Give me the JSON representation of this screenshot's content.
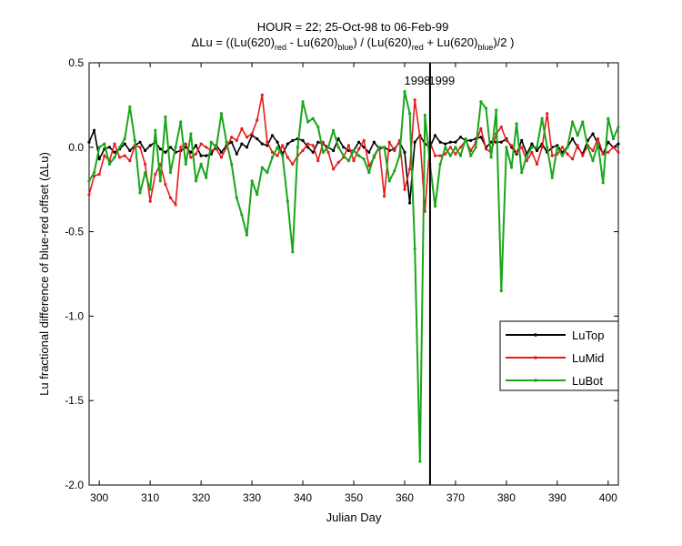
{
  "chart_data": {
    "type": "line",
    "title_line1": "HOUR = 22; 25-Oct-98 to 06-Feb-99",
    "title_line2": {
      "prefix": "ΔLu = ((Lu(620)",
      "sub1": "red",
      "mid1": " - Lu(620)",
      "sub2": "blue",
      "mid2": ") / (Lu(620)",
      "sub3": "red",
      "mid3": " + Lu(620)",
      "sub4": "blue",
      "suffix": ")/2  )"
    },
    "xlabel": "Julian Day",
    "ylabel": "Lu fractional difference of blue-red offset (ΔLu)",
    "xlim": [
      298,
      402
    ],
    "ylim": [
      -2.0,
      0.5
    ],
    "xticks": [
      300,
      310,
      320,
      330,
      340,
      350,
      360,
      370,
      380,
      390,
      400
    ],
    "yticks": [
      0.5,
      0.0,
      -0.5,
      -1.0,
      -1.5,
      -2.0
    ],
    "ytick_labels": [
      "0.5",
      "0.0",
      "-0.5",
      "-1.0",
      "-1.5",
      "-2.0"
    ],
    "vline_x": 365,
    "annotations": [
      {
        "text": "1998",
        "x": 362.5,
        "y": 0.37
      },
      {
        "text": "1999",
        "x": 367.3,
        "y": 0.37
      }
    ],
    "legend": {
      "position": "right",
      "entries": [
        "LuTop",
        "LuMid",
        "LuBot"
      ]
    },
    "series": [
      {
        "name": "LuTop",
        "color": "#000000",
        "x": [
          298,
          299,
          300,
          301,
          302,
          303,
          304,
          305,
          306,
          307,
          308,
          309,
          310,
          311,
          312,
          313,
          314,
          315,
          316,
          317,
          318,
          319,
          320,
          321,
          322,
          323,
          324,
          325,
          326,
          327,
          328,
          329,
          330,
          331,
          332,
          333,
          334,
          335,
          336,
          337,
          338,
          339,
          340,
          341,
          342,
          343,
          344,
          345,
          346,
          347,
          348,
          349,
          350,
          351,
          352,
          353,
          354,
          355,
          356,
          357,
          358,
          359,
          360,
          361,
          362,
          363,
          364,
          365,
          366,
          367,
          368,
          369,
          370,
          371,
          372,
          373,
          374,
          375,
          376,
          377,
          378,
          379,
          380,
          381,
          382,
          383,
          384,
          385,
          386,
          387,
          388,
          389,
          390,
          391,
          392,
          393,
          394,
          395,
          396,
          397,
          398,
          399,
          400,
          401,
          402
        ],
        "values": [
          0.03,
          0.1,
          -0.07,
          -0.01,
          0.0,
          -0.03,
          -0.01,
          0.02,
          -0.02,
          0.01,
          0.03,
          -0.02,
          0.01,
          0.03,
          -0.01,
          -0.03,
          0.0,
          -0.03,
          -0.02,
          0.0,
          -0.03,
          0.01,
          -0.05,
          -0.05,
          -0.04,
          0.01,
          -0.03,
          0.01,
          0.03,
          -0.04,
          0.02,
          0.0,
          0.07,
          0.05,
          0.02,
          0.01,
          0.07,
          0.03,
          -0.04,
          0.02,
          0.04,
          0.05,
          0.04,
          0.0,
          -0.03,
          0.03,
          0.02,
          0.0,
          -0.02,
          0.05,
          0.0,
          -0.02,
          -0.02,
          0.03,
          0.0,
          -0.03,
          0.03,
          -0.01,
          0.0,
          -0.02,
          -0.01,
          0.03,
          -0.03,
          -0.33,
          0.03,
          0.07,
          0.02,
          0.0,
          0.07,
          0.03,
          0.02,
          0.03,
          0.03,
          0.06,
          0.04,
          0.04,
          0.05,
          0.06,
          0.0,
          0.03,
          0.03,
          0.03,
          0.05,
          0.0,
          -0.04,
          0.04,
          -0.04,
          0.02,
          -0.02,
          0.02,
          -0.03,
          0.0,
          0.01,
          -0.03,
          0.0,
          0.05,
          0.0,
          -0.04,
          0.04,
          0.08,
          0.02,
          -0.04,
          0.03,
          0.0,
          0.02
        ]
      },
      {
        "name": "LuMid",
        "color": "#e61a1a",
        "x": [
          298,
          299,
          300,
          301,
          302,
          303,
          304,
          305,
          306,
          307,
          308,
          309,
          310,
          311,
          312,
          313,
          314,
          315,
          316,
          317,
          318,
          319,
          320,
          321,
          322,
          323,
          324,
          325,
          326,
          327,
          328,
          329,
          330,
          331,
          332,
          333,
          334,
          335,
          336,
          337,
          338,
          339,
          340,
          341,
          342,
          343,
          344,
          345,
          346,
          347,
          348,
          349,
          350,
          351,
          352,
          353,
          354,
          355,
          356,
          357,
          358,
          359,
          360,
          361,
          362,
          363,
          364,
          365,
          366,
          367,
          368,
          369,
          370,
          371,
          372,
          373,
          374,
          375,
          376,
          377,
          378,
          379,
          380,
          381,
          382,
          383,
          384,
          385,
          386,
          387,
          388,
          389,
          390,
          391,
          392,
          393,
          394,
          395,
          396,
          397,
          398,
          399,
          400,
          401,
          402
        ],
        "values": [
          -0.28,
          -0.17,
          -0.16,
          -0.05,
          -0.08,
          0.02,
          -0.06,
          -0.05,
          -0.08,
          0.01,
          0.0,
          -0.1,
          -0.32,
          -0.16,
          -0.1,
          -0.22,
          -0.3,
          -0.34,
          0.0,
          0.02,
          -0.06,
          -0.04,
          0.02,
          0.0,
          -0.02,
          -0.01,
          -0.06,
          0.0,
          0.06,
          0.04,
          0.11,
          0.06,
          0.08,
          0.16,
          0.31,
          0.03,
          -0.03,
          -0.05,
          0.01,
          -0.06,
          -0.1,
          -0.05,
          -0.02,
          0.02,
          0.01,
          -0.08,
          0.03,
          -0.03,
          -0.13,
          -0.09,
          -0.06,
          0.01,
          -0.08,
          -0.01,
          0.04,
          -0.11,
          -0.06,
          0.0,
          -0.29,
          0.03,
          -0.02,
          0.04,
          -0.25,
          -0.13,
          0.28,
          0.06,
          -0.38,
          0.03,
          -0.05,
          -0.05,
          -0.04,
          0.0,
          -0.04,
          0.0,
          0.04,
          -0.02,
          0.03,
          0.11,
          -0.01,
          -0.03,
          0.08,
          0.12,
          0.04,
          0.01,
          -0.03,
          0.0,
          -0.08,
          -0.03,
          -0.1,
          0.0,
          0.2,
          -0.05,
          -0.04,
          0.0,
          -0.04,
          -0.07,
          0.01,
          -0.05,
          0.01,
          -0.02,
          0.05,
          -0.04,
          -0.03,
          0.0,
          -0.03
        ]
      },
      {
        "name": "LuBot",
        "color": "#1aa61a",
        "x": [
          298,
          299,
          300,
          301,
          302,
          303,
          304,
          305,
          306,
          307,
          308,
          309,
          310,
          311,
          312,
          313,
          314,
          315,
          316,
          317,
          318,
          319,
          320,
          321,
          322,
          323,
          324,
          325,
          326,
          327,
          328,
          329,
          330,
          331,
          332,
          333,
          334,
          335,
          336,
          337,
          338,
          339,
          340,
          341,
          342,
          343,
          344,
          345,
          346,
          347,
          348,
          349,
          350,
          351,
          352,
          353,
          354,
          355,
          356,
          357,
          358,
          359,
          360,
          361,
          362,
          363,
          364,
          365,
          366,
          367,
          368,
          369,
          370,
          371,
          372,
          373,
          374,
          375,
          376,
          377,
          378,
          379,
          380,
          381,
          382,
          383,
          384,
          385,
          386,
          387,
          388,
          389,
          390,
          391,
          392,
          393,
          394,
          395,
          396,
          397,
          398,
          399,
          400,
          401,
          402
        ],
        "values": [
          -0.2,
          -0.15,
          0.0,
          0.02,
          -0.1,
          -0.06,
          0.0,
          0.05,
          0.24,
          0.04,
          -0.27,
          -0.15,
          -0.25,
          0.1,
          -0.2,
          0.18,
          -0.15,
          0.0,
          0.15,
          -0.1,
          0.08,
          -0.2,
          -0.1,
          -0.18,
          0.03,
          0.0,
          0.2,
          0.03,
          -0.1,
          -0.3,
          -0.4,
          -0.52,
          -0.2,
          -0.28,
          -0.12,
          -0.15,
          -0.06,
          0.0,
          -0.05,
          -0.32,
          -0.62,
          0.0,
          0.27,
          0.15,
          0.17,
          0.12,
          -0.03,
          0.0,
          0.1,
          0.0,
          -0.05,
          -0.08,
          -0.02,
          -0.05,
          -0.07,
          -0.15,
          -0.05,
          0.0,
          0.0,
          -0.2,
          -0.14,
          -0.05,
          0.33,
          0.2,
          -0.6,
          -1.86,
          0.19,
          -0.1,
          -0.35,
          -0.1,
          0.0,
          -0.05,
          0.0,
          -0.05,
          0.05,
          -0.05,
          0.0,
          0.27,
          0.23,
          -0.06,
          0.22,
          -0.85,
          0.0,
          -0.12,
          0.14,
          -0.15,
          -0.05,
          0.0,
          0.0,
          0.17,
          0.0,
          -0.18,
          0.0,
          -0.05,
          0.0,
          0.15,
          0.07,
          0.15,
          0.0,
          -0.08,
          0.02,
          -0.21,
          0.17,
          0.05,
          0.12
        ]
      }
    ]
  }
}
